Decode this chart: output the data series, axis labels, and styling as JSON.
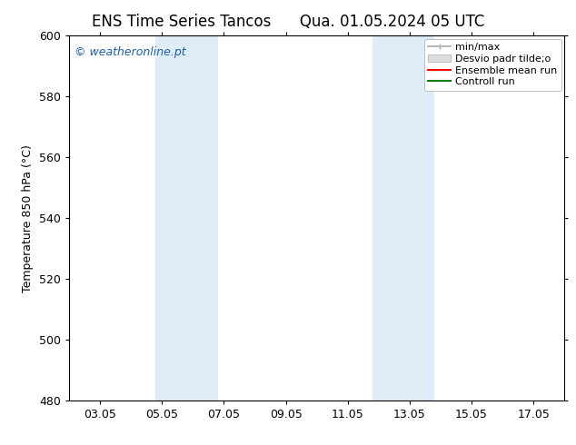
{
  "title_left": "ENS Time Series Tancos",
  "title_right": "Qua. 01.05.2024 05 UTC",
  "ylabel": "Temperature 850 hPa (°C)",
  "ylim": [
    480,
    600
  ],
  "yticks": [
    480,
    500,
    520,
    540,
    560,
    580,
    600
  ],
  "xtick_labels": [
    "03.05",
    "05.05",
    "07.05",
    "09.05",
    "11.05",
    "13.05",
    "15.05",
    "17.05"
  ],
  "xtick_positions": [
    2,
    4,
    6,
    8,
    10,
    12,
    14,
    16
  ],
  "xlim": [
    1,
    17
  ],
  "shaded_bands": [
    {
      "xmin": 3.8,
      "xmax": 5.8,
      "color": "#deedf8"
    },
    {
      "xmin": 10.8,
      "xmax": 12.8,
      "color": "#deedf8"
    }
  ],
  "watermark": "© weatheronline.pt",
  "legend_labels": [
    "min/max",
    "Desvio padr tilde;o",
    "Ensemble mean run",
    "Controll run"
  ],
  "legend_colors_line": [
    "#aaaaaa",
    "#cccccc",
    "#ff0000",
    "#008000"
  ],
  "grid_color": "#cccccc",
  "bg_color": "#ffffff",
  "spine_color": "#000000",
  "title_fontsize": 12,
  "tick_fontsize": 9,
  "ylabel_fontsize": 9,
  "watermark_color": "#1a5fa8",
  "watermark_fontsize": 9
}
